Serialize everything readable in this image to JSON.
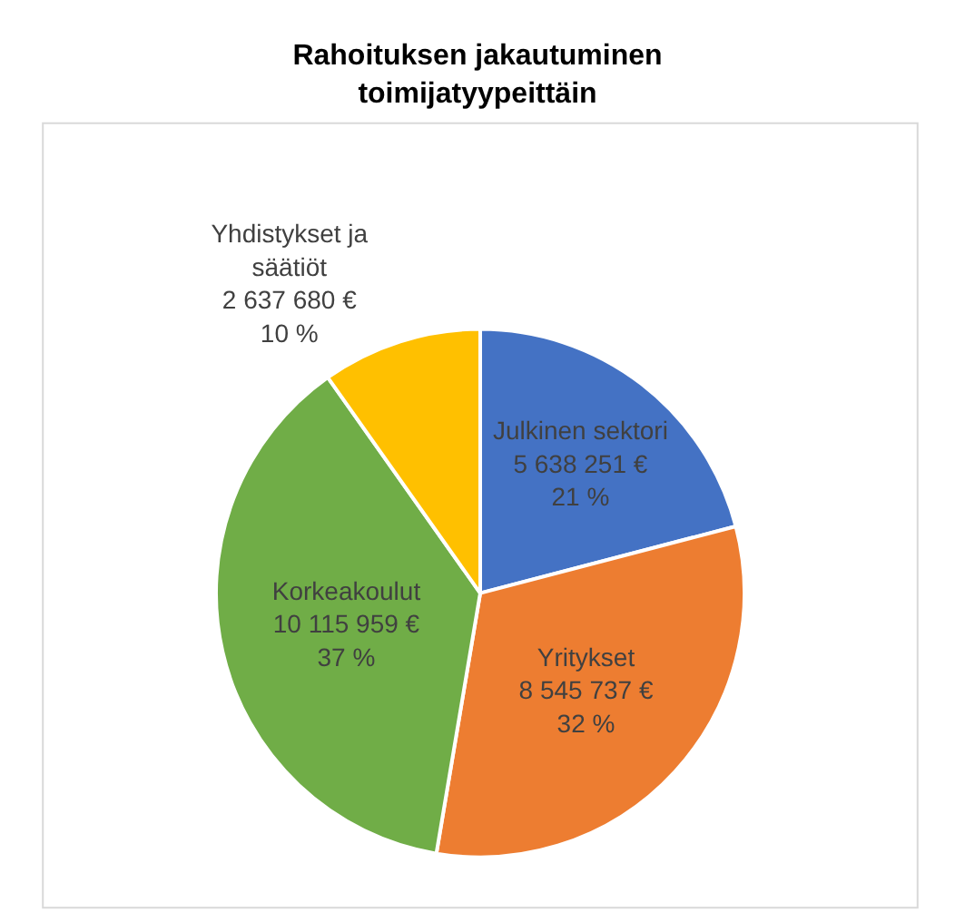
{
  "chart_data": {
    "type": "pie",
    "title": "Rahoituksen jakautuminen\ntoimijatyypeittäin",
    "categories": [
      "Julkinen sektori",
      "Yritykset",
      "Korkeakoulut",
      "Yhdistykset ja säätiöt"
    ],
    "values": [
      5638251,
      8545737,
      10115959,
      2637680
    ],
    "value_labels": [
      "5 638 251 €\n21 %",
      "8 545 737 €\n32 %",
      "10 115 959 €\n37 %",
      "2 637 680 €\n10 %"
    ],
    "colors": [
      "#4472c4",
      "#ed7d31",
      "#70ad47",
      "#ffc000"
    ],
    "legend": false
  }
}
